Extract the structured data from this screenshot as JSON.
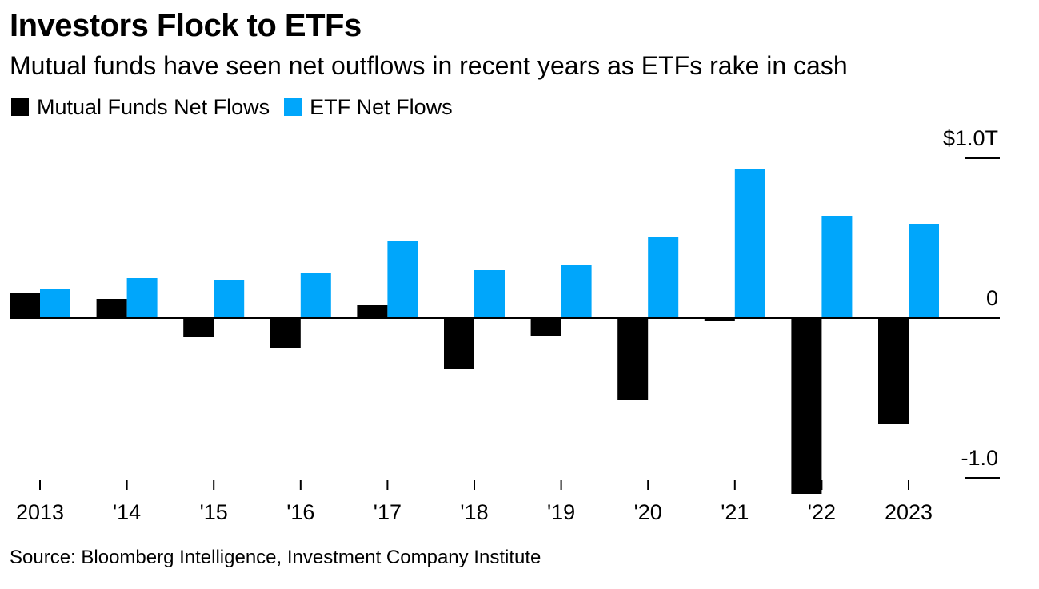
{
  "title": "Investors Flock to ETFs",
  "subtitle": "Mutual funds have seen net outflows in recent years as ETFs rake in cash",
  "source": "Source: Bloomberg Intelligence, Investment Company Institute",
  "colors": {
    "mutual_funds": "#000000",
    "etf": "#00a6fb",
    "axis": "#000000"
  },
  "chart_data": {
    "type": "bar",
    "title": "Investors Flock to ETFs",
    "xlabel": "",
    "ylabel": "",
    "categories": [
      "2013",
      "'14",
      "'15",
      "'16",
      "'17",
      "'18",
      "'19",
      "'20",
      "'21",
      "'22",
      "2023"
    ],
    "series": [
      {
        "name": "Mutual Funds Net Flows",
        "color": "#000000",
        "values": [
          0.16,
          0.12,
          -0.12,
          -0.19,
          0.08,
          -0.32,
          -0.11,
          -0.51,
          -0.02,
          -1.1,
          -0.66
        ]
      },
      {
        "name": "ETF Net Flows",
        "color": "#00a6fb",
        "values": [
          0.18,
          0.25,
          0.24,
          0.28,
          0.48,
          0.3,
          0.33,
          0.51,
          0.93,
          0.64,
          0.59
        ]
      }
    ],
    "ylim": [
      -1.1,
      1.0
    ],
    "yticks": [
      {
        "value": 1.0,
        "label": "$1.0T"
      },
      {
        "value": 0,
        "label": "0"
      },
      {
        "value": -1.0,
        "label": "-1.0"
      }
    ],
    "legend_position": "top-left",
    "grid": false
  }
}
